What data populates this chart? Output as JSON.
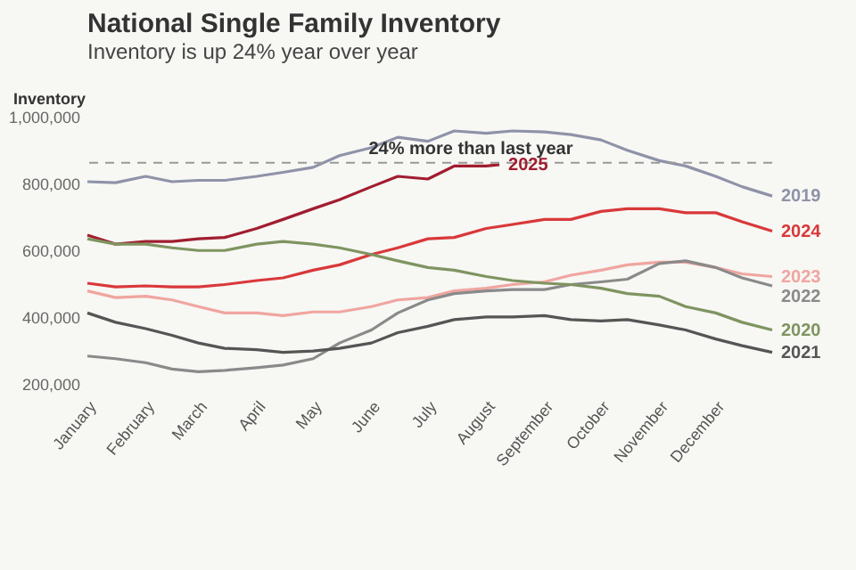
{
  "chart_data": {
    "type": "line",
    "title": "National Single Family Inventory",
    "subtitle": "Inventory is up 24% year over year",
    "ylabel": "Inventory",
    "x": [
      "--01-01",
      "--01-16",
      "--02-01",
      "--02-15",
      "--03-01",
      "--03-15",
      "--04-01",
      "--04-15",
      "--05-01",
      "--05-15",
      "--06-01",
      "--06-15",
      "--07-01",
      "--07-15",
      "--08-01",
      "--08-15",
      "--09-01",
      "--09-15",
      "--10-01",
      "--10-15",
      "--11-01",
      "--11-15",
      "--12-01",
      "--12-15",
      "--12-31"
    ],
    "xlim": [
      "--01-01",
      "--12-31"
    ],
    "xticks": [
      {
        "value": "--01-01",
        "label": "January"
      },
      {
        "value": "--02-01",
        "label": "February"
      },
      {
        "value": "--03-01",
        "label": "March"
      },
      {
        "value": "--04-01",
        "label": "April"
      },
      {
        "value": "--05-01",
        "label": "May"
      },
      {
        "value": "--06-01",
        "label": "June"
      },
      {
        "value": "--07-01",
        "label": "July"
      },
      {
        "value": "--08-01",
        "label": "August"
      },
      {
        "value": "--09-01",
        "label": "September"
      },
      {
        "value": "--10-01",
        "label": "October"
      },
      {
        "value": "--11-01",
        "label": "November"
      },
      {
        "value": "--12-01",
        "label": "December"
      }
    ],
    "ylim": [
      200000,
      1000000
    ],
    "yticks": [
      {
        "value": 200000,
        "label": "200,000"
      },
      {
        "value": 400000,
        "label": "400,000"
      },
      {
        "value": 600000,
        "label": "600,000"
      },
      {
        "value": 800000,
        "label": "800,000"
      },
      {
        "value": 1000000,
        "label": "1,000,000"
      }
    ],
    "line_style": "solid",
    "ref_lines": [
      {
        "axis": "y",
        "value": 865000,
        "label": "24% more than last year",
        "color": "#999999",
        "line_style": "dashed"
      }
    ],
    "series": [
      {
        "name": "2019",
        "color": "#8f93a8",
        "values": [
          808000,
          805000,
          824000,
          808000,
          812000,
          812000,
          824000,
          836000,
          851000,
          886000,
          910000,
          941000,
          929000,
          960000,
          953000,
          960000,
          957000,
          949000,
          933000,
          902000,
          871000,
          855000,
          824000,
          793000,
          765000
        ]
      },
      {
        "name": "2025",
        "color": "#a11d2f",
        "x": [
          "--01-01",
          "--01-16",
          "--02-01",
          "--02-15",
          "--03-01",
          "--03-15",
          "--04-01",
          "--04-15",
          "--05-01",
          "--05-15",
          "--06-01",
          "--06-15",
          "--07-01",
          "--07-15",
          "--08-01",
          "--08-08"
        ],
        "values": [
          648000,
          621000,
          629000,
          629000,
          637000,
          641000,
          668000,
          695000,
          727000,
          754000,
          793000,
          824000,
          816000,
          855000,
          855000,
          859000
        ]
      },
      {
        "name": "2024",
        "color": "#d9383a",
        "values": [
          504000,
          493000,
          496000,
          493000,
          493000,
          500000,
          512000,
          520000,
          543000,
          559000,
          590000,
          610000,
          637000,
          641000,
          668000,
          680000,
          695000,
          695000,
          719000,
          727000,
          727000,
          715000,
          715000,
          688000,
          660000
        ]
      },
      {
        "name": "2023",
        "color": "#f0a5a0",
        "values": [
          481000,
          461000,
          465000,
          454000,
          434000,
          415000,
          415000,
          407000,
          418000,
          418000,
          434000,
          454000,
          461000,
          481000,
          489000,
          500000,
          508000,
          528000,
          543000,
          559000,
          567000,
          567000,
          551000,
          532000,
          524000
        ]
      },
      {
        "name": "2022",
        "color": "#8a8a8a",
        "values": [
          286000,
          278000,
          266000,
          247000,
          239000,
          243000,
          251000,
          259000,
          278000,
          325000,
          364000,
          415000,
          454000,
          473000,
          481000,
          485000,
          485000,
          500000,
          508000,
          516000,
          563000,
          571000,
          551000,
          520000,
          496000
        ]
      },
      {
        "name": "2021",
        "color": "#555555",
        "values": [
          415000,
          387000,
          368000,
          348000,
          325000,
          309000,
          305000,
          297000,
          301000,
          309000,
          325000,
          356000,
          375000,
          395000,
          403000,
          403000,
          407000,
          395000,
          391000,
          395000,
          379000,
          364000,
          337000,
          317000,
          297000
        ]
      },
      {
        "name": "2020",
        "color": "#7f9460",
        "values": [
          637000,
          621000,
          621000,
          610000,
          602000,
          602000,
          621000,
          629000,
          621000,
          610000,
          590000,
          571000,
          551000,
          543000,
          524000,
          512000,
          504000,
          500000,
          489000,
          473000,
          465000,
          434000,
          415000,
          387000,
          364000
        ]
      }
    ]
  }
}
